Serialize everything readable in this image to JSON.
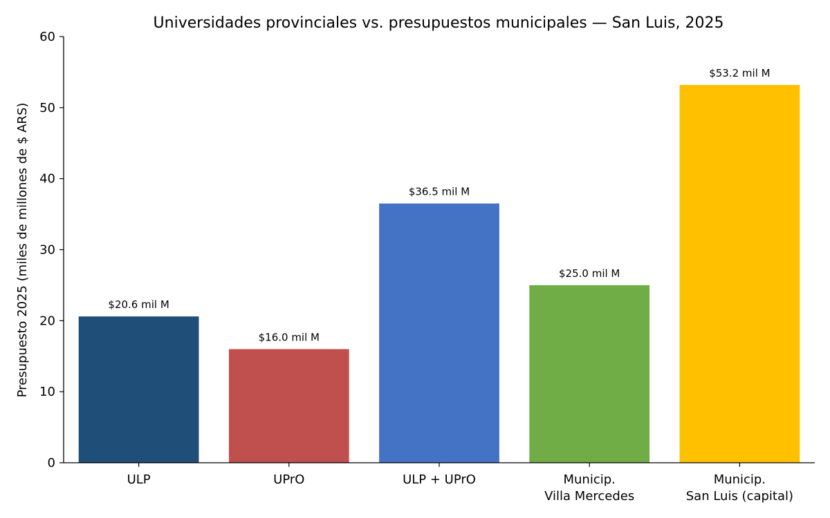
{
  "chart_data": {
    "type": "bar",
    "title": "Universidades provinciales vs. presupuestos municipales — San Luis, 2025",
    "xlabel": "",
    "ylabel": "Presupuesto 2025 (miles de millones de $ ARS)",
    "ylim": [
      0,
      60
    ],
    "yticks": [
      "0",
      "10",
      "20",
      "30",
      "40",
      "50",
      "60"
    ],
    "grid": false,
    "legend": "none",
    "categories": [
      [
        "ULP"
      ],
      [
        "UPrO"
      ],
      [
        "ULP + UPrO"
      ],
      [
        "Municip.",
        "Villa Mercedes"
      ],
      [
        "Municip.",
        "San Luis (capital)"
      ]
    ],
    "values": [
      20.6,
      16.0,
      36.5,
      25.0,
      53.2
    ],
    "labels": [
      "$20.6 mil M",
      "$16.0 mil M",
      "$36.5 mil M",
      "$25.0 mil M",
      "$53.2 mil M"
    ],
    "colors": [
      "#1f4e79",
      "#c0504d",
      "#4472c4",
      "#70ad47",
      "#ffc000"
    ]
  }
}
